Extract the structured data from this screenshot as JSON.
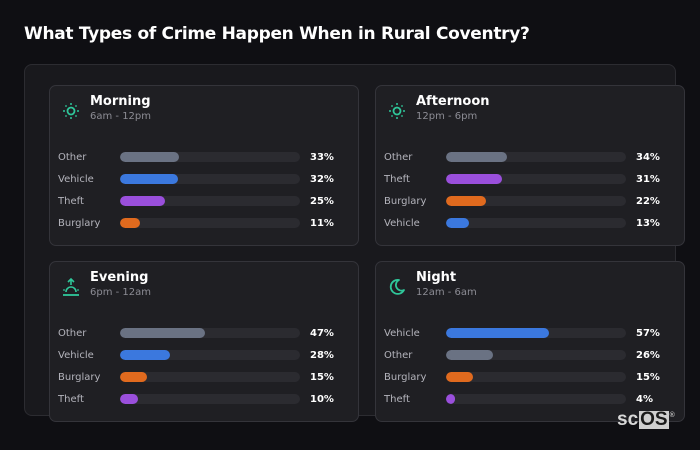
{
  "title": "What Types of Crime Happen When in Rural Coventry?",
  "colors": {
    "Other": "#6a7283",
    "Vehicle": "#3b78de",
    "Theft": "#9a4fdc",
    "Burglary": "#e06a1e",
    "icon": "#2fc79a"
  },
  "cards": [
    {
      "name": "Morning",
      "range": "6am - 12pm",
      "icon": "sun-icon",
      "rows": [
        {
          "label": "Other",
          "value": 33,
          "pct": "33%"
        },
        {
          "label": "Vehicle",
          "value": 32,
          "pct": "32%"
        },
        {
          "label": "Theft",
          "value": 25,
          "pct": "25%"
        },
        {
          "label": "Burglary",
          "value": 11,
          "pct": "11%"
        }
      ]
    },
    {
      "name": "Afternoon",
      "range": "12pm - 6pm",
      "icon": "sun-icon",
      "rows": [
        {
          "label": "Other",
          "value": 34,
          "pct": "34%"
        },
        {
          "label": "Theft",
          "value": 31,
          "pct": "31%"
        },
        {
          "label": "Burglary",
          "value": 22,
          "pct": "22%"
        },
        {
          "label": "Vehicle",
          "value": 13,
          "pct": "13%"
        }
      ]
    },
    {
      "name": "Evening",
      "range": "6pm - 12am",
      "icon": "sunset-icon",
      "rows": [
        {
          "label": "Other",
          "value": 47,
          "pct": "47%"
        },
        {
          "label": "Vehicle",
          "value": 28,
          "pct": "28%"
        },
        {
          "label": "Burglary",
          "value": 15,
          "pct": "15%"
        },
        {
          "label": "Theft",
          "value": 10,
          "pct": "10%"
        }
      ]
    },
    {
      "name": "Night",
      "range": "12am - 6am",
      "icon": "moon-icon",
      "rows": [
        {
          "label": "Vehicle",
          "value": 57,
          "pct": "57%"
        },
        {
          "label": "Other",
          "value": 26,
          "pct": "26%"
        },
        {
          "label": "Burglary",
          "value": 15,
          "pct": "15%"
        },
        {
          "label": "Theft",
          "value": 4,
          "pct": "4%"
        }
      ]
    }
  ],
  "logo": {
    "sc": "sc",
    "os": "OS",
    "reg": "®"
  },
  "chart_data": [
    {
      "type": "bar",
      "title": "Morning",
      "subtitle": "6am - 12pm",
      "orientation": "horizontal",
      "categories": [
        "Other",
        "Vehicle",
        "Theft",
        "Burglary"
      ],
      "values": [
        33,
        32,
        25,
        11
      ],
      "unit": "%",
      "xlim": [
        0,
        100
      ]
    },
    {
      "type": "bar",
      "title": "Afternoon",
      "subtitle": "12pm - 6pm",
      "orientation": "horizontal",
      "categories": [
        "Other",
        "Theft",
        "Burglary",
        "Vehicle"
      ],
      "values": [
        34,
        31,
        22,
        13
      ],
      "unit": "%",
      "xlim": [
        0,
        100
      ]
    },
    {
      "type": "bar",
      "title": "Evening",
      "subtitle": "6pm - 12am",
      "orientation": "horizontal",
      "categories": [
        "Other",
        "Vehicle",
        "Burglary",
        "Theft"
      ],
      "values": [
        47,
        28,
        15,
        10
      ],
      "unit": "%",
      "xlim": [
        0,
        100
      ]
    },
    {
      "type": "bar",
      "title": "Night",
      "subtitle": "12am - 6am",
      "orientation": "horizontal",
      "categories": [
        "Vehicle",
        "Other",
        "Burglary",
        "Theft"
      ],
      "values": [
        57,
        26,
        15,
        4
      ],
      "unit": "%",
      "xlim": [
        0,
        100
      ]
    }
  ]
}
